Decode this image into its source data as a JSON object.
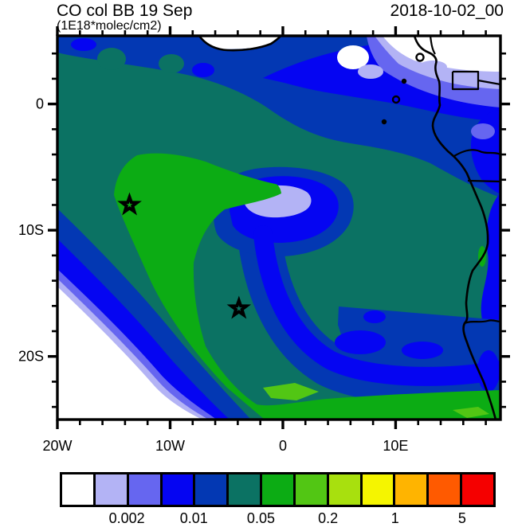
{
  "header": {
    "title_left": "CO col BB 19 Sep",
    "title_right": "2018-10-02_00",
    "units_subtitle": "(1E18*molec/cm2)"
  },
  "chart_data": {
    "type": "heatmap",
    "subtype": "filled-contour geographic map",
    "title": "CO col BB 19 Sep",
    "timestamp": "2018-10-02_00",
    "units": "1E18*molec/cm2",
    "region": "South Atlantic / West-Central Africa (Gulf of Guinea to Namibia)",
    "x_axis": {
      "label": "longitude",
      "range_deg_east": [
        -20,
        19.3
      ],
      "major_ticks": [
        -20,
        -10,
        0,
        10
      ],
      "major_tick_labels": [
        "20W",
        "10W",
        "0",
        "10E"
      ],
      "minor_tick_step_deg": 2
    },
    "y_axis": {
      "label": "latitude",
      "range_deg_north": [
        -25,
        5.4
      ],
      "major_ticks": [
        0,
        -10,
        -20
      ],
      "major_tick_labels": [
        "0",
        "10S",
        "20S"
      ],
      "minor_tick_step_deg": 2
    },
    "colorbar": {
      "boundary_levels": [
        0.001,
        0.002,
        0.005,
        0.01,
        0.02,
        0.05,
        0.1,
        0.2,
        0.5,
        1,
        2,
        5
      ],
      "tick_labels": [
        "0.002",
        "0.01",
        "0.05",
        "0.2",
        "1",
        "5"
      ],
      "labeled_boundary_indices": [
        2,
        4,
        6,
        8,
        10,
        12
      ],
      "colors": [
        "#ffffff",
        "#b3b3f5",
        "#6666f0",
        "#0505f2",
        "#0338b3",
        "#0b7263",
        "#0cac14",
        "#52c614",
        "#a8e00e",
        "#f5f500",
        "#ffb400",
        "#ff5a00",
        "#f50000"
      ]
    },
    "markers": [
      {
        "type": "star",
        "lon": -13.6,
        "lat": -8.0
      },
      {
        "type": "star",
        "lon": -3.9,
        "lat": -16.2
      }
    ],
    "features": [
      {
        "region": "southwest corner of domain (open ocean)",
        "value_band": "< 0.001 (white minimum) with concentric 0.001-0.02 fringe bands"
      },
      {
        "region": "broad ocean/land background",
        "value_band": "0.02-0.05 (dark teal)"
      },
      {
        "region": "biomass-burning plume: arc from bottom edge (0-15E) hooking north-west up to ~8S,14W through first star",
        "value_band": "0.05-0.1 (green) with 0.1-0.2 streaks near 5W,24S and 12E,23S"
      },
      {
        "region": "low-CO eddy centred near 4W,8S",
        "value_band": "core down to 0.001-0.002 (lavender) ringed by 0.005-0.02 blues"
      },
      {
        "region": "north edge, Gulf of Guinea / Nigeria-Cameroon coast",
        "value_band": "minimum < 0.001-0.01 over land, 0.005-0.02 offshore"
      },
      {
        "region": "zonal band near 16-19S east of 5W",
        "value_band": "0.005-0.02 (blue/navy)"
      }
    ],
    "coast_outline": "African coastline drawn in black: Ghana cape at top, Niger delta, Cameroon-Gabon-Congo-Angola coast down right side; country borders and Gulf-of-Guinea island dots marked"
  }
}
